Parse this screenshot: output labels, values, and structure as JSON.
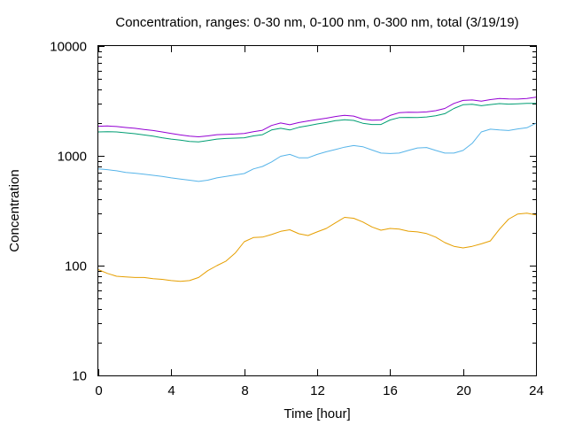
{
  "chart_data": {
    "type": "line",
    "title": "Concentration, ranges: 0-30 nm, 0-100 nm, 0-300 nm, total (3/19/19)",
    "xlabel": "Time [hour]",
    "ylabel": "Concentration",
    "xlim": [
      0,
      24
    ],
    "ylim": [
      10,
      10000
    ],
    "yscale": "log",
    "grid": false,
    "legend": "none",
    "x_ticks": [
      0,
      4,
      8,
      12,
      16,
      20,
      24
    ],
    "y_ticks": [
      10,
      100,
      1000,
      10000
    ],
    "x": [
      0,
      0.5,
      1,
      1.5,
      2,
      2.5,
      3,
      3.5,
      4,
      4.5,
      5,
      5.5,
      6,
      6.5,
      7,
      7.5,
      8,
      8.5,
      9,
      9.5,
      10,
      10.5,
      11,
      11.5,
      12,
      12.5,
      13,
      13.5,
      14,
      14.5,
      15,
      15.5,
      16,
      16.5,
      17,
      17.5,
      18,
      18.5,
      19,
      19.5,
      20,
      20.5,
      21,
      21.5,
      22,
      22.5,
      23,
      23.5,
      24
    ],
    "series": [
      {
        "color": "#e69f00",
        "values": [
          92,
          85,
          80,
          79,
          78,
          78,
          76,
          75,
          73,
          72,
          73,
          78,
          90,
          100,
          110,
          130,
          165,
          180,
          182,
          192,
          205,
          212,
          195,
          188,
          203,
          218,
          245,
          275,
          270,
          250,
          225,
          210,
          218,
          215,
          206,
          203,
          196,
          182,
          162,
          150,
          145,
          150,
          158,
          168,
          215,
          265,
          295,
          300,
          290
        ]
      },
      {
        "color": "#56b4e9",
        "values": [
          760,
          748,
          730,
          705,
          695,
          680,
          665,
          650,
          630,
          615,
          600,
          585,
          600,
          630,
          650,
          670,
          690,
          760,
          800,
          880,
          990,
          1030,
          960,
          960,
          1030,
          1090,
          1140,
          1200,
          1240,
          1210,
          1130,
          1060,
          1050,
          1060,
          1120,
          1180,
          1190,
          1120,
          1060,
          1060,
          1120,
          1300,
          1650,
          1750,
          1720,
          1700,
          1760,
          1800,
          1980
        ]
      },
      {
        "color": "#009e73",
        "values": [
          1650,
          1660,
          1650,
          1620,
          1590,
          1550,
          1510,
          1460,
          1420,
          1390,
          1350,
          1340,
          1380,
          1420,
          1440,
          1450,
          1460,
          1520,
          1560,
          1720,
          1780,
          1720,
          1820,
          1880,
          1950,
          2010,
          2090,
          2130,
          2100,
          1980,
          1930,
          1930,
          2120,
          2230,
          2240,
          2230,
          2260,
          2320,
          2420,
          2700,
          2920,
          2950,
          2860,
          2930,
          2990,
          2960,
          2980,
          3000,
          3000
        ]
      },
      {
        "color": "#9400d3",
        "values": [
          1860,
          1870,
          1850,
          1810,
          1780,
          1740,
          1700,
          1650,
          1600,
          1550,
          1510,
          1490,
          1520,
          1560,
          1570,
          1580,
          1600,
          1660,
          1710,
          1890,
          1990,
          1920,
          2010,
          2080,
          2140,
          2200,
          2280,
          2340,
          2300,
          2160,
          2110,
          2120,
          2330,
          2470,
          2500,
          2490,
          2510,
          2580,
          2700,
          3000,
          3200,
          3230,
          3150,
          3250,
          3330,
          3300,
          3290,
          3330,
          3420
        ]
      }
    ]
  }
}
